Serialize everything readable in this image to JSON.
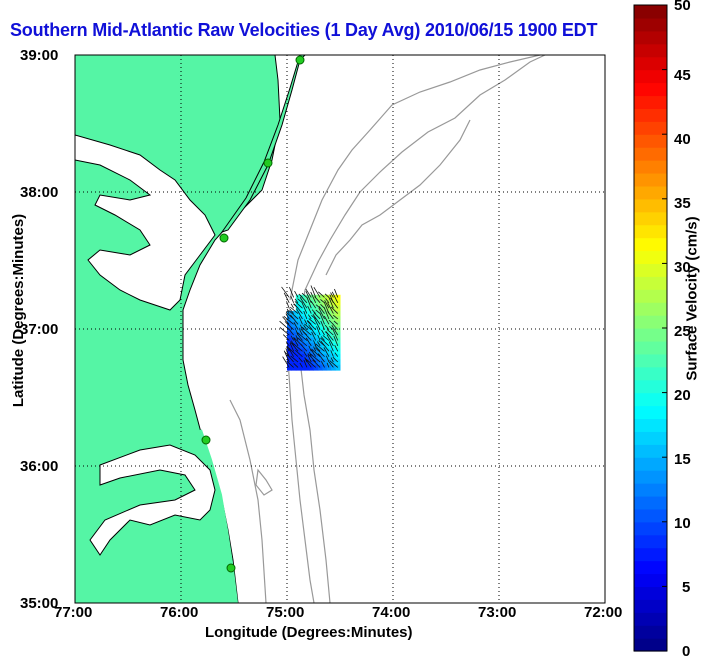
{
  "title": "Southern Mid-Atlantic Raw Velocities (1 Day Avg) 2010/06/15 1900 EDT",
  "xlabel": "Longitude (Degrees:Minutes)",
  "ylabel": "Latitude (Degrees:Minutes)",
  "colorbar_label": "Surface Velocity (cm/s)",
  "x_ticks": [
    "77:00",
    "76:00",
    "75:00",
    "74:00",
    "73:00",
    "72:00"
  ],
  "y_ticks": [
    "39:00",
    "38:00",
    "37:00",
    "36:00",
    "35:00"
  ],
  "colorbar_ticks": [
    "0",
    "5",
    "10",
    "15",
    "20",
    "25",
    "30",
    "35",
    "40",
    "45",
    "50"
  ],
  "colors": {
    "title": "#1010d8",
    "land": "#55f5a5",
    "coast": "#000000",
    "bathymetry": "#999999",
    "station": "#22cc22"
  },
  "chart_data": {
    "type": "heatmap",
    "description_units": "cm/s",
    "xlim": [
      -77.0,
      -72.0
    ],
    "ylim": [
      35.0,
      39.0
    ],
    "colorbar_range": [
      0,
      50
    ],
    "grid": true,
    "velocity_field_extent": {
      "lon": [
        -75.0,
        -74.5
      ],
      "lat": [
        36.7,
        37.25
      ]
    }
  }
}
